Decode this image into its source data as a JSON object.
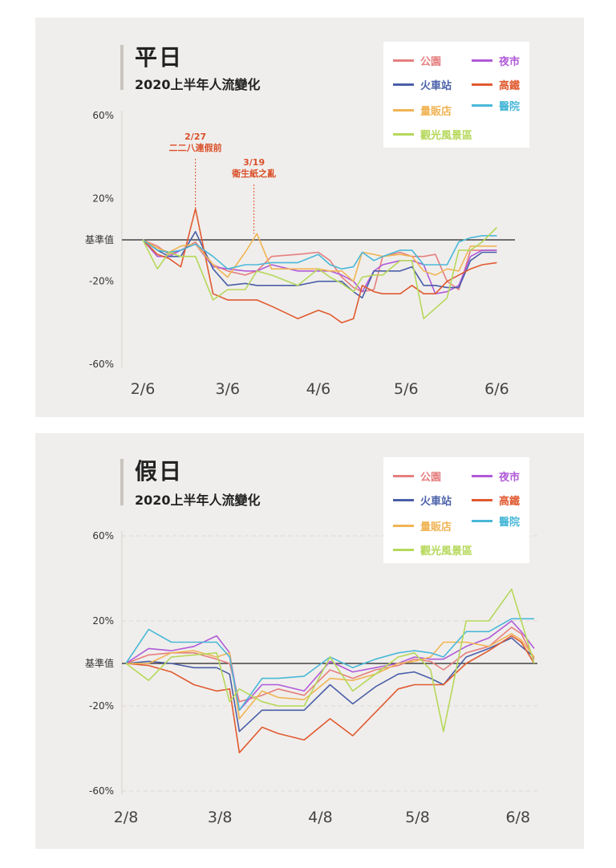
{
  "chart_data": [
    {
      "type": "line",
      "title": "平日",
      "subtitle": "2020上半年人流變化",
      "baseline_label": "基準值",
      "y_ticks": [
        {
          "v": 60,
          "label": "60%"
        },
        {
          "v": 20,
          "label": "20%"
        },
        {
          "v": -20,
          "label": "-20%"
        },
        {
          "v": -60,
          "label": "-60%"
        }
      ],
      "ylim": [
        -60,
        60
      ],
      "x_ticks": [
        {
          "v": 0,
          "label": "2/6"
        },
        {
          "v": 29,
          "label": "3/6"
        },
        {
          "v": 60,
          "label": "4/6"
        },
        {
          "v": 90,
          "label": "5/6"
        },
        {
          "v": 121,
          "label": "6/6"
        }
      ],
      "xlim": [
        0,
        125
      ],
      "grid": false,
      "legend_position": "top-right",
      "annotations": [
        {
          "x": 18,
          "y": 14,
          "lines": [
            "2/27",
            "二二八連假前"
          ]
        },
        {
          "x": 38,
          "y": 3,
          "lines": [
            "3/19",
            "衛生紙之亂"
          ]
        }
      ],
      "series": [
        {
          "name": "公園",
          "color": "#e57f7f",
          "x": [
            0,
            5,
            9,
            13,
            18,
            24,
            29,
            35,
            39,
            44,
            53,
            60,
            64,
            68,
            72,
            75,
            79,
            82,
            88,
            92,
            96,
            100,
            104,
            108,
            112,
            116,
            121
          ],
          "y": [
            0,
            -3,
            -7,
            -5,
            -1,
            -12,
            -15,
            -17,
            -15,
            -8,
            -7,
            -6,
            -10,
            -18,
            -23,
            -25,
            -24,
            -8,
            -6,
            -8,
            -8,
            -7,
            -20,
            -24,
            -5,
            -5,
            -5
          ]
        },
        {
          "name": "夜市",
          "color": "#b05ad8",
          "x": [
            0,
            5,
            9,
            13,
            18,
            24,
            29,
            35,
            39,
            44,
            53,
            60,
            64,
            68,
            72,
            75,
            79,
            82,
            88,
            92,
            96,
            100,
            104,
            108,
            112,
            116,
            121
          ],
          "y": [
            0,
            -8,
            -8,
            -5,
            -2,
            -13,
            -14,
            -15,
            -15,
            -12,
            -15,
            -15,
            -15,
            -17,
            -20,
            -25,
            -15,
            -12,
            -10,
            -10,
            -12,
            -26,
            -25,
            -22,
            -8,
            -5,
            -5
          ]
        },
        {
          "name": "火車站",
          "color": "#4a5fa8",
          "x": [
            0,
            5,
            9,
            13,
            18,
            24,
            29,
            35,
            39,
            44,
            53,
            60,
            64,
            68,
            72,
            75,
            79,
            82,
            88,
            92,
            96,
            100,
            104,
            108,
            112,
            116,
            121
          ],
          "y": [
            0,
            -5,
            -8,
            -8,
            4,
            -14,
            -22,
            -21,
            -22,
            -22,
            -22,
            -20,
            -20,
            -20,
            -25,
            -28,
            -15,
            -15,
            -15,
            -13,
            -22,
            -22,
            -23,
            -23,
            -10,
            -6,
            -6
          ]
        },
        {
          "name": "高鐵",
          "color": "#e05a30",
          "x": [
            0,
            5,
            9,
            13,
            18,
            24,
            29,
            35,
            39,
            44,
            53,
            60,
            64,
            68,
            72,
            75,
            79,
            82,
            88,
            92,
            96,
            100,
            104,
            108,
            112,
            116,
            121
          ],
          "y": [
            0,
            -7,
            -9,
            -13,
            15,
            -26,
            -29,
            -29,
            -29,
            -32,
            -38,
            -34,
            -36,
            -40,
            -38,
            -22,
            -25,
            -26,
            -26,
            -22,
            -26,
            -26,
            -20,
            -17,
            -14,
            -12,
            -11
          ]
        },
        {
          "name": "量販店",
          "color": "#f0b455",
          "x": [
            0,
            5,
            9,
            13,
            18,
            24,
            29,
            35,
            39,
            44,
            53,
            60,
            64,
            68,
            72,
            75,
            79,
            82,
            88,
            92,
            96,
            100,
            104,
            108,
            112,
            116,
            121
          ],
          "y": [
            0,
            -4,
            -6,
            -3,
            -2,
            -12,
            -18,
            -6,
            3,
            -14,
            -14,
            -14,
            -15,
            -15,
            -20,
            -6,
            -7,
            -8,
            -7,
            -8,
            -15,
            -17,
            -14,
            -15,
            -3,
            -3,
            -3
          ]
        },
        {
          "name": "醫院",
          "color": "#4ab8d8",
          "x": [
            0,
            5,
            9,
            13,
            18,
            24,
            29,
            35,
            39,
            44,
            53,
            60,
            64,
            68,
            72,
            75,
            79,
            82,
            88,
            92,
            96,
            100,
            104,
            108,
            112,
            116,
            121
          ],
          "y": [
            0,
            -5,
            -6,
            -5,
            -2,
            -8,
            -14,
            -12,
            -12,
            -11,
            -11,
            -7,
            -12,
            -14,
            -13,
            -6,
            -10,
            -8,
            -5,
            -5,
            -12,
            -12,
            -12,
            -1,
            1,
            2,
            2
          ]
        },
        {
          "name": "觀光風景區",
          "color": "#b5d85a",
          "x": [
            0,
            5,
            9,
            13,
            18,
            24,
            29,
            35,
            39,
            44,
            53,
            60,
            64,
            68,
            72,
            75,
            79,
            82,
            88,
            92,
            96,
            100,
            104,
            108,
            112,
            116,
            121
          ],
          "y": [
            0,
            -14,
            -6,
            -8,
            -8,
            -29,
            -24,
            -24,
            -15,
            -17,
            -22,
            -14,
            -18,
            -21,
            -25,
            -18,
            -17,
            -17,
            -10,
            -10,
            -38,
            -33,
            -28,
            -5,
            -5,
            -1,
            6
          ]
        }
      ]
    },
    {
      "type": "line",
      "title": "假日",
      "subtitle": "2020上半年人流變化",
      "baseline_label": "基準值",
      "y_ticks": [
        {
          "v": 60,
          "label": "60%"
        },
        {
          "v": 20,
          "label": "20%"
        },
        {
          "v": -20,
          "label": "-20%"
        },
        {
          "v": -60,
          "label": "-60%"
        }
      ],
      "ylim": [
        -60,
        60
      ],
      "x_ticks": [
        {
          "v": 0,
          "label": "2/8"
        },
        {
          "v": 29,
          "label": "3/8"
        },
        {
          "v": 60,
          "label": "4/8"
        },
        {
          "v": 90,
          "label": "5/8"
        },
        {
          "v": 121,
          "label": "6/8"
        }
      ],
      "xlim": [
        0,
        125
      ],
      "grid": true,
      "legend_position": "top-right",
      "annotations": [],
      "series": [
        {
          "name": "公園",
          "color": "#e57f7f",
          "x": [
            0,
            7,
            14,
            21,
            28,
            32,
            35,
            42,
            47,
            55,
            63,
            70,
            77,
            84,
            89,
            94,
            98,
            105,
            112,
            119,
            122,
            126
          ],
          "y": [
            0,
            4,
            5,
            5,
            2,
            0,
            -18,
            -15,
            -12,
            -15,
            -3,
            -7,
            -3,
            -1,
            2,
            1,
            -3,
            5,
            8,
            17,
            14,
            2
          ]
        },
        {
          "name": "夜市",
          "color": "#b05ad8",
          "x": [
            0,
            7,
            14,
            21,
            28,
            32,
            35,
            42,
            47,
            55,
            63,
            70,
            77,
            84,
            89,
            94,
            98,
            105,
            112,
            119,
            122,
            126
          ],
          "y": [
            0,
            7,
            6,
            8,
            13,
            5,
            -22,
            -10,
            -10,
            -13,
            1,
            -4,
            -2,
            0,
            3,
            2,
            2,
            8,
            12,
            20,
            15,
            7
          ]
        },
        {
          "name": "火車站",
          "color": "#4a5fa8",
          "x": [
            0,
            7,
            14,
            21,
            28,
            32,
            35,
            42,
            47,
            55,
            63,
            70,
            77,
            84,
            89,
            94,
            98,
            105,
            112,
            119,
            122,
            126
          ],
          "y": [
            0,
            1,
            0,
            -2,
            -2,
            -5,
            -32,
            -22,
            -22,
            -22,
            -10,
            -19,
            -11,
            -5,
            -4,
            -7,
            -10,
            3,
            7,
            12,
            8,
            3
          ]
        },
        {
          "name": "高鐵",
          "color": "#e05a30",
          "x": [
            0,
            7,
            14,
            21,
            28,
            32,
            35,
            42,
            47,
            55,
            63,
            70,
            77,
            84,
            89,
            94,
            98,
            105,
            112,
            119,
            122,
            126
          ],
          "y": [
            0,
            -1,
            -4,
            -10,
            -13,
            -12,
            -42,
            -30,
            -33,
            -36,
            -26,
            -34,
            -23,
            -12,
            -10,
            -10,
            -10,
            0,
            6,
            13,
            10,
            0
          ]
        },
        {
          "name": "量販店",
          "color": "#f0b455",
          "x": [
            0,
            7,
            14,
            21,
            28,
            32,
            35,
            42,
            47,
            55,
            63,
            70,
            77,
            84,
            89,
            94,
            98,
            105,
            112,
            119,
            122,
            126
          ],
          "y": [
            0,
            0,
            5,
            6,
            3,
            5,
            -26,
            -13,
            -16,
            -17,
            -7,
            -8,
            -5,
            0,
            1,
            3,
            10,
            10,
            8,
            14,
            11,
            3
          ]
        },
        {
          "name": "醫院",
          "color": "#4ab8d8",
          "x": [
            0,
            7,
            14,
            21,
            28,
            32,
            35,
            42,
            47,
            55,
            63,
            70,
            77,
            84,
            89,
            94,
            98,
            105,
            112,
            119,
            122,
            126
          ],
          "y": [
            0,
            16,
            10,
            10,
            10,
            3,
            -22,
            -7,
            -7,
            -6,
            3,
            -2,
            2,
            5,
            6,
            5,
            3,
            15,
            15,
            21,
            21,
            21
          ]
        },
        {
          "name": "觀光風景區",
          "color": "#b5d85a",
          "x": [
            0,
            7,
            14,
            21,
            28,
            32,
            35,
            42,
            47,
            55,
            63,
            70,
            77,
            84,
            89,
            94,
            98,
            105,
            112,
            119,
            122,
            126
          ],
          "y": [
            0,
            -8,
            3,
            4,
            5,
            -18,
            -12,
            -18,
            -20,
            -20,
            3,
            -13,
            -5,
            3,
            5,
            -3,
            -32,
            20,
            20,
            35,
            20,
            0
          ]
        }
      ]
    }
  ]
}
